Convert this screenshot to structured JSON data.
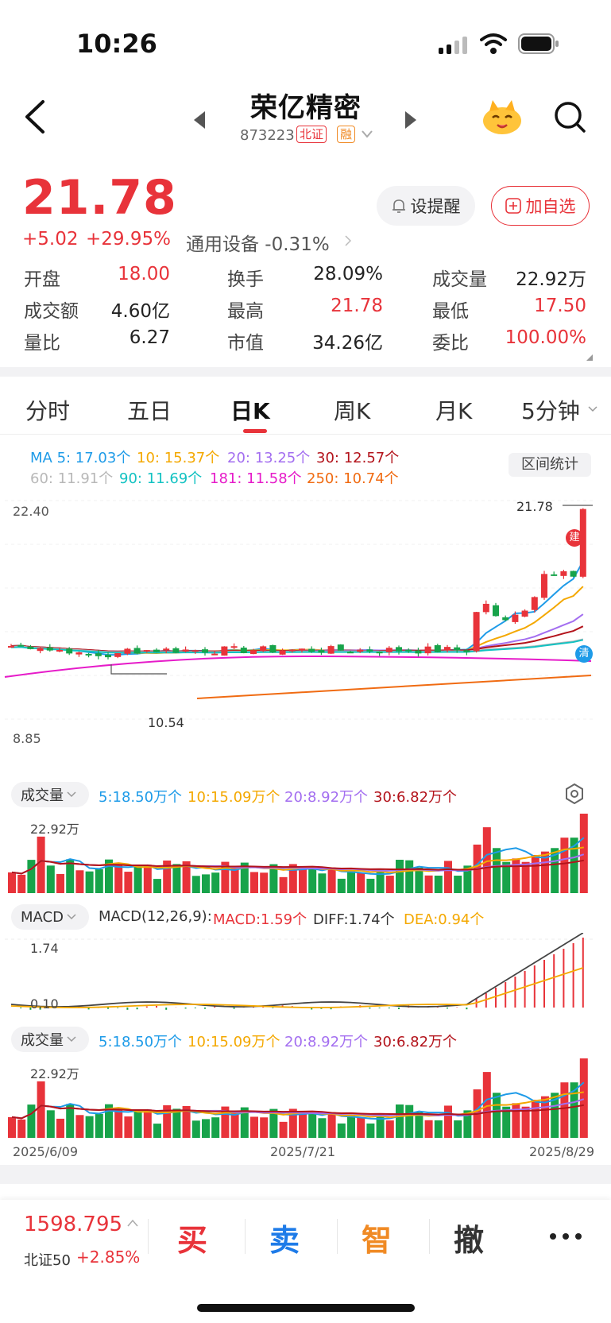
{
  "status": {
    "time": "10:26"
  },
  "header": {
    "name": "荣亿精密",
    "code": "873223",
    "tag_exchange": "北证",
    "tag_margin": "融"
  },
  "quote": {
    "price": "21.78",
    "change": "+5.02",
    "change_pct": "+29.95%",
    "sector": "通用设备 -0.31%",
    "alert_label": "设提醒",
    "fav_label": "加自选",
    "stats": [
      {
        "label": "开盘",
        "value": "18.00",
        "color": "#e8333a"
      },
      {
        "label": "换手",
        "value": "28.09%",
        "color": "#222222"
      },
      {
        "label": "成交量",
        "value": "22.92万",
        "color": "#222222"
      },
      {
        "label": "成交额",
        "value": "4.60亿",
        "color": "#222222"
      },
      {
        "label": "最高",
        "value": "21.78",
        "color": "#e8333a"
      },
      {
        "label": "最低",
        "value": "17.50",
        "color": "#e8333a"
      },
      {
        "label": "量比",
        "value": "6.27",
        "color": "#222222"
      },
      {
        "label": "市值",
        "value": "34.26亿",
        "color": "#222222"
      },
      {
        "label": "委比",
        "value": "100.00%",
        "color": "#e8333a"
      }
    ]
  },
  "tabs": [
    "分时",
    "五日",
    "日K",
    "周K",
    "月K",
    "5分钟"
  ],
  "active_tab": "日K",
  "ma": {
    "row1": [
      {
        "text": "MA 5: 17.03个",
        "color": "#1e9be8"
      },
      {
        "text": "10: 15.37个",
        "color": "#f4a800"
      },
      {
        "text": "20: 13.25个",
        "color": "#a36ef0"
      },
      {
        "text": "30: 12.57个",
        "color": "#b3131b"
      }
    ],
    "row2": [
      {
        "text": "60: 11.91个",
        "color": "#b8b8b8"
      },
      {
        "text": "90: 11.69个",
        "color": "#12c2c2"
      },
      {
        "text": "181: 11.58个",
        "color": "#e61bc9"
      },
      {
        "text": "250: 10.74个",
        "color": "#f06b12"
      }
    ],
    "range_label": "区间统计"
  },
  "kline": {
    "y_top": "22.40",
    "y_bottom": "8.85",
    "hi_label": "21.78",
    "lo_label": "10.54",
    "marker_build": "建",
    "marker_clear": "清"
  },
  "volume": {
    "pill": "成交量",
    "items": [
      {
        "text": "5:18.50万个",
        "color": "#1e9be8"
      },
      {
        "text": "10:15.09万个",
        "color": "#f4a800"
      },
      {
        "text": "20:8.92万个",
        "color": "#a36ef0"
      },
      {
        "text": "30:6.82万个",
        "color": "#b3131b"
      }
    ],
    "max_label": "22.92万"
  },
  "macd": {
    "pill": "MACD",
    "params": "MACD(12,26,9):",
    "items": [
      {
        "text": "MACD:1.59个",
        "color": "#e8333a"
      },
      {
        "text": "DIFF:1.74个",
        "color": "#333333"
      },
      {
        "text": "DEA:0.94个",
        "color": "#f4a800"
      }
    ],
    "top_label": "1.74",
    "low_label": "0.10"
  },
  "dates": [
    "2025/6/09",
    "2025/7/21",
    "2025/8/29"
  ],
  "bottom": {
    "index_value": "1598.795",
    "index_name": "北证50",
    "index_pct": "+2.85%",
    "actions": [
      {
        "label": "买",
        "color": "#e8333a"
      },
      {
        "label": "卖",
        "color": "#1e7be8"
      },
      {
        "label": "智",
        "color": "#f08a24"
      },
      {
        "label": "撤",
        "color": "#333333"
      }
    ]
  }
}
